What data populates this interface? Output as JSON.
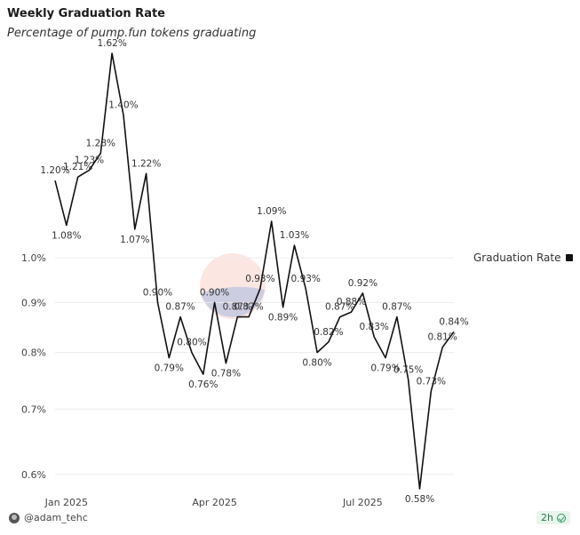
{
  "header": {
    "title": "Weekly Graduation Rate",
    "subtitle": "Percentage of pump.fun tokens graduating"
  },
  "legend": {
    "label": "Graduation Rate",
    "color": "#111111"
  },
  "footer": {
    "user": "@adam_tehc",
    "time": "2h"
  },
  "chart_data": {
    "type": "line",
    "scale": "log",
    "ylim": [
      0.58,
      1.62
    ],
    "yticks": [
      {
        "value": 1.0,
        "label": "1.0%"
      },
      {
        "value": 0.9,
        "label": "0.9%"
      },
      {
        "value": 0.8,
        "label": "0.8%"
      },
      {
        "value": 0.7,
        "label": "0.7%"
      },
      {
        "value": 0.6,
        "label": "0.6%"
      }
    ],
    "xticks": [
      {
        "index": 1,
        "label": "Jan 2025"
      },
      {
        "index": 14,
        "label": "Apr 2025"
      },
      {
        "index": 27,
        "label": "Jul 2025"
      }
    ],
    "grid": true,
    "legend_position": "right",
    "series": [
      {
        "name": "Graduation Rate",
        "color": "#111111",
        "values": [
          1.2,
          1.08,
          1.21,
          1.23,
          1.28,
          1.62,
          1.4,
          1.07,
          1.22,
          0.9,
          0.79,
          0.87,
          0.8,
          0.76,
          0.9,
          0.78,
          0.87,
          0.87,
          0.93,
          1.09,
          0.89,
          1.03,
          0.93,
          0.8,
          0.82,
          0.87,
          0.88,
          0.92,
          0.83,
          0.79,
          0.87,
          0.75,
          0.58,
          0.73,
          0.81,
          0.84
        ],
        "labels": [
          "1.20%",
          "1.08%",
          "1.21%",
          "1.23%",
          "1.28%",
          "1.62%",
          "1.40%",
          "1.07%",
          "1.22%",
          "0.90%",
          "0.79%",
          "0.87%",
          "0.80%",
          "0.76%",
          "0.90%",
          "0.78%",
          "0.87%",
          "0.87%",
          "0.93%",
          "1.09%",
          "0.89%",
          "1.03%",
          "0.93%",
          "0.80%",
          "0.82%",
          "0.87%",
          "0.88%",
          "0.92%",
          "0.83%",
          "0.79%",
          "0.87%",
          "0.75%",
          "0.58%",
          "0.73%",
          "0.81%",
          "0.84%"
        ]
      }
    ]
  }
}
